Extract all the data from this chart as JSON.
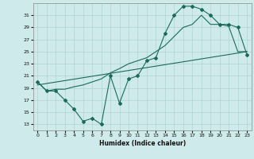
{
  "xlabel": "Humidex (Indice chaleur)",
  "background_color": "#ceeaea",
  "grid_color": "#afd4d4",
  "line_color": "#1a6b5a",
  "xlim": [
    -0.5,
    23.5
  ],
  "ylim": [
    12,
    33
  ],
  "yticks": [
    13,
    15,
    17,
    19,
    21,
    23,
    25,
    27,
    29,
    31
  ],
  "xticks": [
    0,
    1,
    2,
    3,
    4,
    5,
    6,
    7,
    8,
    9,
    10,
    11,
    12,
    13,
    14,
    15,
    16,
    17,
    18,
    19,
    20,
    21,
    22,
    23
  ],
  "line1_x": [
    0,
    1,
    2,
    3,
    4,
    5,
    6,
    7,
    8,
    9,
    10,
    11,
    12,
    13,
    14,
    15,
    16,
    17,
    18,
    19,
    20,
    21,
    22,
    23
  ],
  "line1_y": [
    20.0,
    18.5,
    18.5,
    17.0,
    15.5,
    13.5,
    14.0,
    13.0,
    21.0,
    16.5,
    20.5,
    21.0,
    23.5,
    24.0,
    28.0,
    31.0,
    32.5,
    32.5,
    32.0,
    31.0,
    29.5,
    29.5,
    29.0,
    24.5
  ],
  "line2_x": [
    0,
    23
  ],
  "line2_y": [
    19.5,
    25.0
  ],
  "line3_x": [
    0,
    1,
    2,
    3,
    4,
    5,
    6,
    7,
    8,
    9,
    10,
    11,
    12,
    13,
    14,
    15,
    16,
    17,
    18,
    19,
    20,
    21,
    22,
    23
  ],
  "line3_y": [
    20.0,
    18.5,
    18.8,
    18.8,
    19.2,
    19.5,
    20.0,
    20.5,
    21.5,
    22.2,
    23.0,
    23.5,
    24.0,
    25.0,
    26.0,
    27.5,
    29.0,
    29.5,
    31.0,
    29.5,
    29.5,
    29.2,
    25.0,
    25.0
  ]
}
